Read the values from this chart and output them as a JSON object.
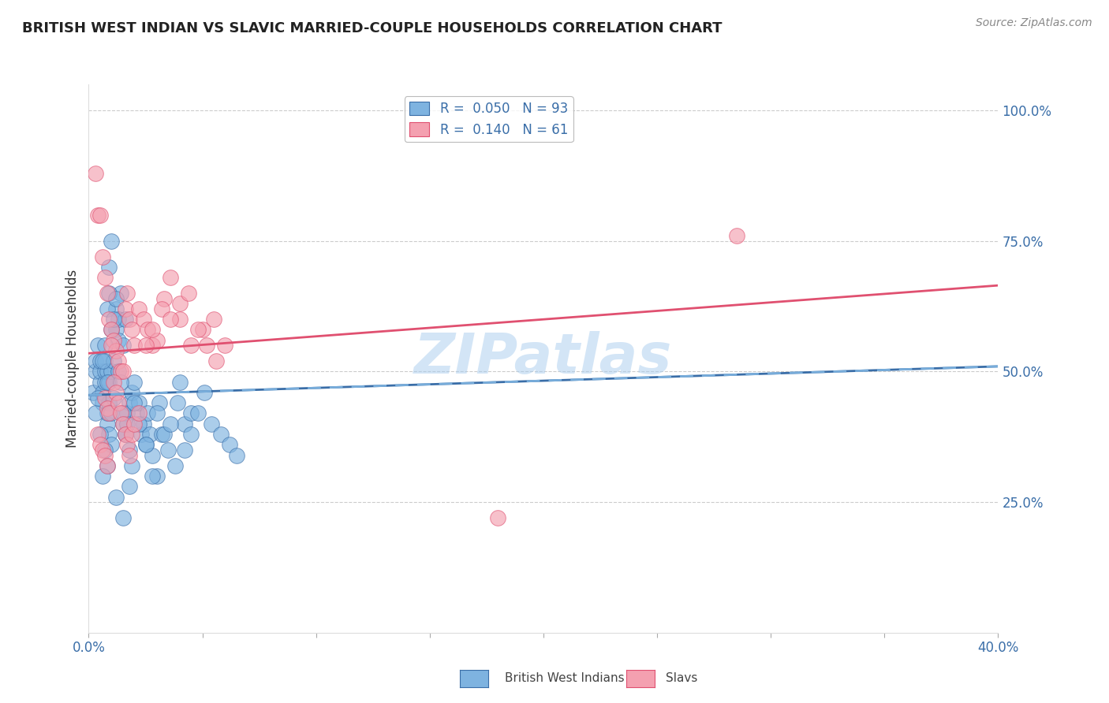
{
  "title": "BRITISH WEST INDIAN VS SLAVIC MARRIED-COUPLE HOUSEHOLDS CORRELATION CHART",
  "source": "Source: ZipAtlas.com",
  "ylabel": "Married-couple Households",
  "xlim": [
    0.0,
    0.4
  ],
  "ylim": [
    0.0,
    1.05
  ],
  "legend_blue_r": "R =  0.050",
  "legend_blue_n": "N = 93",
  "legend_pink_r": "R =  0.140",
  "legend_pink_n": "N = 61",
  "blue_color": "#7EB3E0",
  "pink_color": "#F4A0B0",
  "trend_blue_solid_color": "#3A6EA8",
  "trend_blue_dash_color": "#7EB3E0",
  "trend_pink_color": "#E05070",
  "watermark": "ZIPatlas",
  "watermark_color": "#A8CCEE",
  "background_color": "#FFFFFF",
  "grid_color": "#CCCCCC",
  "axis_label_color": "#3A6EA8",
  "title_color": "#222222",
  "blue_scatter_x": [
    0.002,
    0.003,
    0.003,
    0.004,
    0.005,
    0.005,
    0.005,
    0.006,
    0.006,
    0.007,
    0.007,
    0.007,
    0.008,
    0.008,
    0.008,
    0.009,
    0.009,
    0.009,
    0.01,
    0.01,
    0.01,
    0.011,
    0.011,
    0.012,
    0.012,
    0.013,
    0.013,
    0.014,
    0.015,
    0.015,
    0.016,
    0.016,
    0.017,
    0.018,
    0.019,
    0.02,
    0.021,
    0.022,
    0.023,
    0.024,
    0.025,
    0.026,
    0.027,
    0.028,
    0.03,
    0.031,
    0.032,
    0.035,
    0.038,
    0.04,
    0.042,
    0.045,
    0.003,
    0.004,
    0.005,
    0.006,
    0.007,
    0.007,
    0.008,
    0.008,
    0.009,
    0.009,
    0.01,
    0.01,
    0.011,
    0.012,
    0.013,
    0.014,
    0.015,
    0.016,
    0.017,
    0.018,
    0.019,
    0.02,
    0.022,
    0.025,
    0.028,
    0.03,
    0.033,
    0.036,
    0.039,
    0.042,
    0.045,
    0.048,
    0.051,
    0.054,
    0.058,
    0.062,
    0.065,
    0.015,
    0.018,
    0.012,
    0.008,
    0.006
  ],
  "blue_scatter_y": [
    0.46,
    0.5,
    0.52,
    0.55,
    0.48,
    0.5,
    0.52,
    0.44,
    0.46,
    0.48,
    0.5,
    0.52,
    0.4,
    0.42,
    0.5,
    0.38,
    0.44,
    0.48,
    0.36,
    0.42,
    0.5,
    0.45,
    0.52,
    0.58,
    0.62,
    0.56,
    0.6,
    0.65,
    0.4,
    0.55,
    0.38,
    0.6,
    0.42,
    0.44,
    0.46,
    0.48,
    0.42,
    0.44,
    0.38,
    0.4,
    0.36,
    0.42,
    0.38,
    0.34,
    0.3,
    0.44,
    0.38,
    0.35,
    0.32,
    0.48,
    0.4,
    0.42,
    0.42,
    0.45,
    0.38,
    0.52,
    0.35,
    0.55,
    0.62,
    0.48,
    0.65,
    0.7,
    0.75,
    0.58,
    0.6,
    0.64,
    0.5,
    0.48,
    0.42,
    0.38,
    0.4,
    0.35,
    0.32,
    0.44,
    0.4,
    0.36,
    0.3,
    0.42,
    0.38,
    0.4,
    0.44,
    0.35,
    0.38,
    0.42,
    0.46,
    0.4,
    0.38,
    0.36,
    0.34,
    0.22,
    0.28,
    0.26,
    0.32,
    0.3
  ],
  "pink_scatter_x": [
    0.003,
    0.004,
    0.005,
    0.006,
    0.007,
    0.008,
    0.009,
    0.01,
    0.011,
    0.012,
    0.013,
    0.014,
    0.015,
    0.016,
    0.017,
    0.018,
    0.019,
    0.02,
    0.022,
    0.024,
    0.026,
    0.028,
    0.03,
    0.033,
    0.036,
    0.04,
    0.045,
    0.05,
    0.055,
    0.06,
    0.007,
    0.008,
    0.009,
    0.01,
    0.011,
    0.012,
    0.013,
    0.014,
    0.015,
    0.016,
    0.017,
    0.018,
    0.019,
    0.02,
    0.022,
    0.025,
    0.028,
    0.032,
    0.036,
    0.04,
    0.044,
    0.048,
    0.052,
    0.056,
    0.004,
    0.005,
    0.006,
    0.007,
    0.008,
    0.285,
    0.18
  ],
  "pink_scatter_y": [
    0.88,
    0.8,
    0.8,
    0.72,
    0.68,
    0.65,
    0.6,
    0.58,
    0.56,
    0.54,
    0.52,
    0.5,
    0.5,
    0.62,
    0.65,
    0.6,
    0.58,
    0.55,
    0.62,
    0.6,
    0.58,
    0.55,
    0.56,
    0.64,
    0.68,
    0.6,
    0.55,
    0.58,
    0.6,
    0.55,
    0.45,
    0.43,
    0.42,
    0.55,
    0.48,
    0.46,
    0.44,
    0.42,
    0.4,
    0.38,
    0.36,
    0.34,
    0.38,
    0.4,
    0.42,
    0.55,
    0.58,
    0.62,
    0.6,
    0.63,
    0.65,
    0.58,
    0.55,
    0.52,
    0.38,
    0.36,
    0.35,
    0.34,
    0.32,
    0.76,
    0.22
  ],
  "blue_trend_x": [
    0.0,
    0.4
  ],
  "blue_trend_y": [
    0.455,
    0.51
  ],
  "pink_trend_x": [
    0.0,
    0.4
  ],
  "pink_trend_y": [
    0.535,
    0.665
  ],
  "bottom_legend_labels": [
    "British West Indians",
    "Slavs"
  ]
}
